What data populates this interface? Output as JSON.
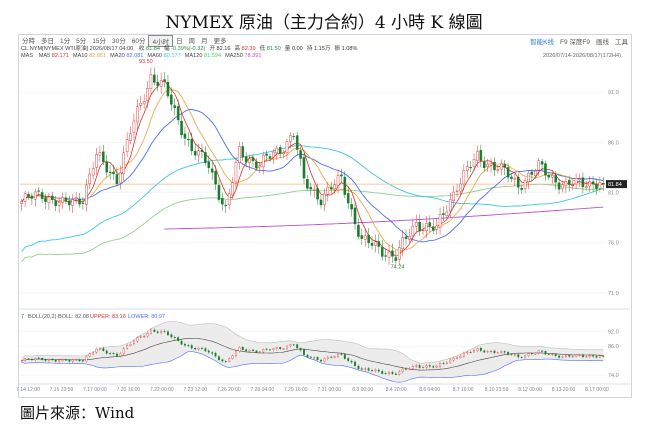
{
  "page": {
    "title": "NYMEX 原油（主力合約）4 小時 K 線圖",
    "source": "圖片來源：Wind"
  },
  "toolbar": {
    "timeframes": [
      "分時",
      "多日",
      "1分",
      "5分",
      "15分",
      "30分",
      "60分",
      "4小时",
      "日",
      "周",
      "月",
      "更多"
    ],
    "selected": "4小时",
    "right_items": [
      "智能K线",
      "F9 深度F9",
      "画线",
      "工具"
    ]
  },
  "info": {
    "symbol_line": "CL.NYM[NYMEX WTI原油]  2026/08/17 04:00",
    "stats": [
      {
        "label": "收",
        "value": "81.84",
        "color": "#2b8a3e"
      },
      {
        "label": "幅",
        "value": "-0.39%(-0.32)",
        "color": "#2b8a3e"
      },
      {
        "label": "开",
        "value": "82.16",
        "color": "#333333"
      },
      {
        "label": "高",
        "value": "82.39",
        "color": "#e03131"
      },
      {
        "label": "低",
        "value": "81.50",
        "color": "#2b8a3e"
      },
      {
        "label": "量",
        "value": "0.00",
        "color": "#333333"
      },
      {
        "label": "持",
        "value": "1.15万",
        "color": "#333333"
      },
      {
        "label": "振",
        "value": "1.08%",
        "color": "#333333"
      }
    ],
    "ma_line": [
      {
        "label": "MAS",
        "value": "",
        "color": "#555555"
      },
      {
        "label": "MA5",
        "value": "82.171",
        "color": "#e03131"
      },
      {
        "label": "MA10",
        "value": "82.051",
        "color": "#e8a33d"
      },
      {
        "label": "MA20",
        "value": "82.081",
        "color": "#4c6ef5"
      },
      {
        "label": "MA60",
        "value": "80.177",
        "color": "#3bc9db"
      },
      {
        "label": "MA120",
        "value": "81.594",
        "color": "#51cf66"
      },
      {
        "label": "MA250",
        "value": "78.391",
        "color": "#be4bdb"
      }
    ],
    "range_text": "2026/07/14-2026/08/17(172H4)"
  },
  "boll": {
    "label": "BOLL(20,2)",
    "boll_value": "BOLL: 82.08",
    "upper_value": "UPPER: 83.18",
    "lower_value": "LOWER: 80.97"
  },
  "colors": {
    "up": "#e03131",
    "down": "#1c7c2e",
    "ma5": "#e03131",
    "ma10": "#e8a33d",
    "ma20": "#4c6ef5",
    "ma60": "#3bc9db",
    "ma120": "#8fd18f",
    "ma250": "#be4bdb",
    "last_line": "#f0b878",
    "boll_band": "#d0d0d0",
    "boll_mid": "#444444",
    "boll_upper": "#e03131",
    "boll_lower": "#4c6ef5"
  },
  "chart_data": {
    "type": "candlestick",
    "y_range": [
      70,
      93.8
    ],
    "y_ticks": [
      "91.0",
      "86.0",
      "81.0",
      "76.0",
      "71.0"
    ],
    "y_tick_values": [
      91,
      86,
      81,
      76,
      71
    ],
    "last_price": "81.84",
    "last_price_value": 81.84,
    "annotations": [
      {
        "text": "93.50",
        "candle": 38,
        "price": 93.5,
        "side": "above"
      },
      {
        "text": "74.24",
        "candle": 112,
        "price": 74.24,
        "side": "below"
      }
    ],
    "x_ticks": [
      "7.14 12:00",
      "7.15 23:59",
      "7.17 00:00",
      "7.20 16:00",
      "7.22 00:00",
      "7.23 12:00",
      "7.26 20:00",
      "7.28 04:00",
      "7.29 16:00",
      "7.31 00:00",
      "8.3 00:00",
      "8.4 20:00",
      "8.6 04:00",
      "8.7 16:00",
      "8.10 23:59",
      "8.12 00:00",
      "8.13 20:00",
      "8.17 00:00"
    ],
    "candle_count": 172,
    "anchors": [
      [
        0,
        80.1
      ],
      [
        6,
        80.9
      ],
      [
        12,
        79.7
      ],
      [
        18,
        80.6
      ],
      [
        22,
        84.6
      ],
      [
        28,
        82.4
      ],
      [
        33,
        88.0
      ],
      [
        38,
        92.6
      ],
      [
        42,
        91.4
      ],
      [
        46,
        88.3
      ],
      [
        50,
        85.2
      ],
      [
        55,
        83.8
      ],
      [
        60,
        79.2
      ],
      [
        64,
        85.0
      ],
      [
        70,
        83.8
      ],
      [
        76,
        85.3
      ],
      [
        80,
        86.9
      ],
      [
        83,
        82.0
      ],
      [
        88,
        80.5
      ],
      [
        94,
        82.3
      ],
      [
        100,
        76.2
      ],
      [
        106,
        75.3
      ],
      [
        110,
        74.6
      ],
      [
        116,
        78.0
      ],
      [
        122,
        77.3
      ],
      [
        128,
        81.8
      ],
      [
        134,
        84.5
      ],
      [
        140,
        83.5
      ],
      [
        146,
        81.8
      ],
      [
        152,
        83.5
      ],
      [
        160,
        81.6
      ],
      [
        166,
        82.1
      ],
      [
        171,
        81.84
      ]
    ],
    "boll_panel": {
      "y_range": [
        72,
        96
      ],
      "y_ticks": [
        "92.0",
        "86.0",
        "74.0"
      ],
      "y_tick_values": [
        92,
        86,
        74
      ]
    }
  }
}
